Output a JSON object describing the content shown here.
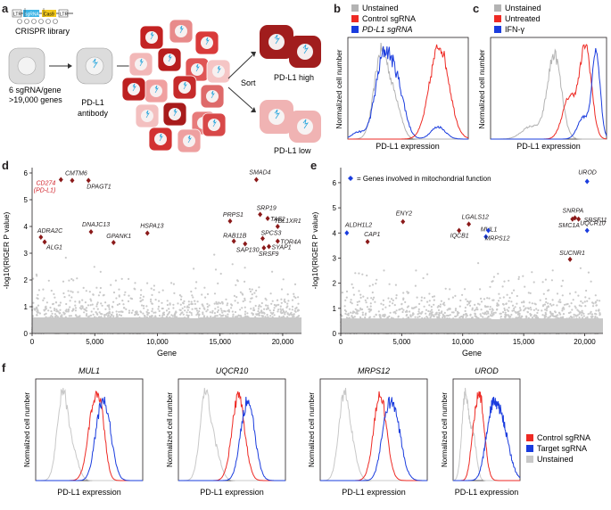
{
  "panels": {
    "a": "a",
    "b": "b",
    "c": "c",
    "d": "d",
    "e": "e",
    "f": "f"
  },
  "panel_a": {
    "construct": [
      "LTR",
      "sgRNA",
      "Cas9",
      "LTR"
    ],
    "library_label": "CRISPR library",
    "library_desc": [
      "6 sgRNA/gene",
      ">19,000 genes"
    ],
    "antibody_label": [
      "PD-L1",
      "antibody"
    ],
    "sort_label": "Sort",
    "high_label": "PD-L1 high",
    "low_label": "PD-L1 low"
  },
  "panel_b": {
    "legend": [
      {
        "label": "Unstained",
        "color": "#b3b3b3"
      },
      {
        "label": "Control sgRNA",
        "color": "#ee2a24"
      },
      {
        "label": "PD-L1 sgRNA",
        "color": "#1a3cde"
      }
    ],
    "ylabel": "Normalized cell number",
    "xlabel": "PD-L1 expression"
  },
  "panel_c": {
    "legend": [
      {
        "label": "Unstained",
        "color": "#b3b3b3"
      },
      {
        "label": "Untreated",
        "color": "#ee2a24"
      },
      {
        "label": "IFN-γ",
        "color": "#1a3cde"
      }
    ],
    "ylabel": "Normalized cell number",
    "xlabel": "PD-L1 expression"
  },
  "chart_data": [
    {
      "type": "scatter",
      "id": "d",
      "xlabel": "Gene",
      "ylabel": "-log10(RIGER P value)",
      "xlim": [
        0,
        21500
      ],
      "ylim": [
        0,
        6.2
      ],
      "xticks": [
        "0",
        "5,000",
        "10,000",
        "15,000",
        "20,000"
      ],
      "yticks": [
        "0",
        "1",
        "2",
        "3",
        "4",
        "5",
        "6"
      ],
      "highlighted": [
        {
          "label": "CD274 (PD-L1)",
          "x": 2300,
          "y": 5.75,
          "color": "#d01c24"
        },
        {
          "label": "CMTM6",
          "x": 3200,
          "y": 5.72
        },
        {
          "label": "DPAGT1",
          "x": 4500,
          "y": 5.72
        },
        {
          "label": "SMAD4",
          "x": 17900,
          "y": 5.75
        },
        {
          "label": "SRP19",
          "x": 18200,
          "y": 4.45
        },
        {
          "label": "TAF2",
          "x": 18800,
          "y": 4.3
        },
        {
          "label": "TBL1XR1",
          "x": 19600,
          "y": 4.0
        },
        {
          "label": "PRPS1",
          "x": 15800,
          "y": 4.2
        },
        {
          "label": "ADRA2C",
          "x": 700,
          "y": 3.6
        },
        {
          "label": "ALG1",
          "x": 1000,
          "y": 3.42
        },
        {
          "label": "DNAJC13",
          "x": 4700,
          "y": 3.8
        },
        {
          "label": "GPANK1",
          "x": 6500,
          "y": 3.4
        },
        {
          "label": "HSPA13",
          "x": 9200,
          "y": 3.75
        },
        {
          "label": "RAB11B",
          "x": 16100,
          "y": 3.45
        },
        {
          "label": "SAP130",
          "x": 17000,
          "y": 3.35
        },
        {
          "label": "SPCS3",
          "x": 18400,
          "y": 3.55
        },
        {
          "label": "SYAP1",
          "x": 18900,
          "y": 3.25
        },
        {
          "label": "SRSF9",
          "x": 18500,
          "y": 3.2
        },
        {
          "label": "TOR4A",
          "x": 19600,
          "y": 3.45
        }
      ]
    },
    {
      "type": "scatter",
      "id": "e",
      "xlabel": "Gene",
      "ylabel": "-log10(RIGER P value)",
      "legend": "= Genes involved in mitochondrial function",
      "xlim": [
        0,
        21500
      ],
      "ylim": [
        0,
        6.6
      ],
      "xticks": [
        "0",
        "5,000",
        "10,000",
        "15,000",
        "20,000"
      ],
      "yticks": [
        "0",
        "1",
        "2",
        "3",
        "4",
        "5",
        "6"
      ],
      "highlighted": [
        {
          "label": "ALDH1L2",
          "x": 500,
          "y": 4.0,
          "mito": true
        },
        {
          "label": "CAP1",
          "x": 2200,
          "y": 3.65,
          "mito": false
        },
        {
          "label": "ENY2",
          "x": 5100,
          "y": 4.45,
          "mito": false
        },
        {
          "label": "LGALS12",
          "x": 10500,
          "y": 4.35,
          "mito": false
        },
        {
          "label": "IQCB1",
          "x": 9700,
          "y": 4.1,
          "mito": false
        },
        {
          "label": "MUL1",
          "x": 11900,
          "y": 3.85,
          "mito": true
        },
        {
          "label": "MRPS12",
          "x": 12100,
          "y": 4.1,
          "mito": true
        },
        {
          "label": "UROD",
          "x": 20200,
          "y": 6.05,
          "mito": true
        },
        {
          "label": "SNRPA",
          "x": 19200,
          "y": 4.6,
          "mito": false
        },
        {
          "label": "SRSF11",
          "x": 19500,
          "y": 4.55,
          "mito": false
        },
        {
          "label": "SMC1A",
          "x": 19000,
          "y": 4.55,
          "mito": false
        },
        {
          "label": "UQCR10",
          "x": 20200,
          "y": 4.1,
          "mito": true
        },
        {
          "label": "SUCNR1",
          "x": 18800,
          "y": 2.95,
          "mito": false
        }
      ]
    }
  ],
  "panel_f": {
    "titles": [
      "MUL1",
      "UQCR10",
      "MRPS12",
      "UROD"
    ],
    "ylabel": "Normalized cell number",
    "xlabel": "PD-L1 expression",
    "legend": [
      {
        "label": "Control sgRNA",
        "color": "#ee2a24"
      },
      {
        "label": "Target sgRNA",
        "color": "#1a3cde"
      },
      {
        "label": "Unstained",
        "color": "#c8c8c8"
      }
    ]
  },
  "colors": {
    "red": "#ee2a24",
    "blue": "#1a3cde",
    "grey": "#b3b3b3",
    "darkred": "#8b1a1a",
    "mito": "#1a3cde"
  }
}
